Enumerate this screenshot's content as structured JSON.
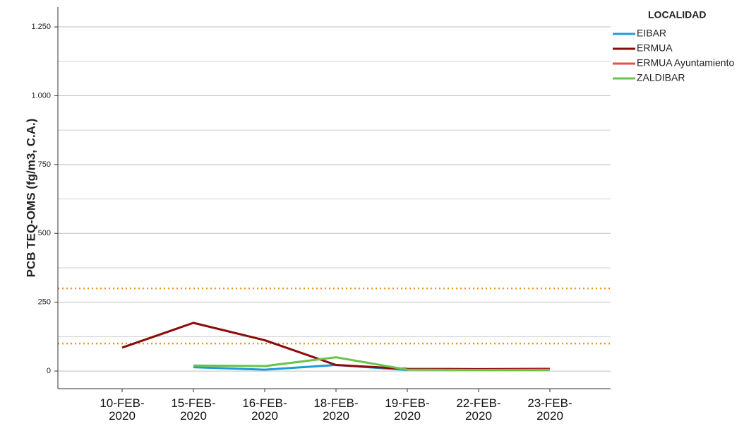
{
  "chart_data": {
    "type": "line",
    "ylabel": "PCB TEQ-OMS (fg/m3, C.A.)",
    "legend_title": "LOCALIDAD",
    "legend": "right",
    "categories": [
      "10-FEB-2020",
      "15-FEB-2020",
      "16-FEB-2020",
      "18-FEB-2020",
      "19-FEB-2020",
      "22-FEB-2020",
      "23-FEB-2020"
    ],
    "series": [
      {
        "name": "EIBAR",
        "color": "#1f9bd7",
        "values": [
          null,
          14,
          5,
          22,
          4,
          null,
          null
        ]
      },
      {
        "name": "ERMUA",
        "color": "#8b0a0a",
        "values": [
          85,
          175,
          112,
          22,
          8,
          7,
          8
        ]
      },
      {
        "name": "ERMUA Ayuntamiento",
        "color": "#e0524a",
        "values": [
          null,
          null,
          null,
          null,
          null,
          4,
          5
        ]
      },
      {
        "name": "ZALDIBAR",
        "color": "#6cc24a",
        "values": [
          null,
          20,
          18,
          50,
          5,
          4,
          4
        ]
      }
    ],
    "ylim": [
      -64,
      1322
    ],
    "yticks": [
      0,
      250,
      500,
      750,
      {
        "value": 1000,
        "label": "1.000"
      },
      {
        "value": 1250,
        "label": "1.250"
      }
    ],
    "minor_yticks": [
      125,
      375,
      625,
      875,
      1125
    ],
    "grid": true,
    "reference_lines": [
      300,
      100
    ],
    "reference_color": "#f0941e"
  }
}
